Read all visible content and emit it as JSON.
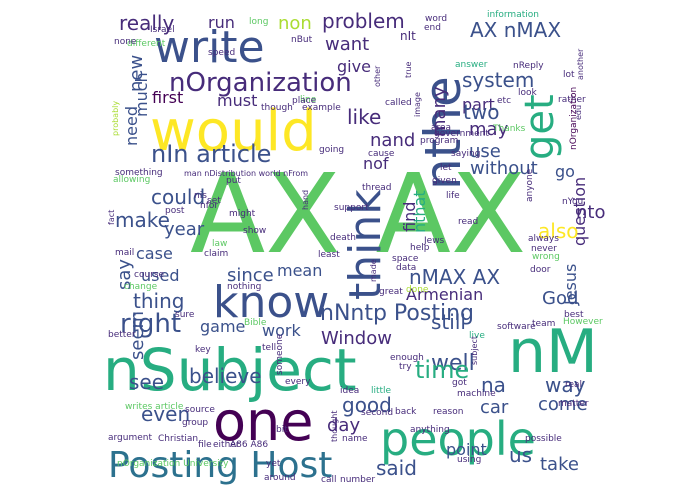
{
  "palette": {
    "dark_purple": "#440154",
    "purple": "#472c7a",
    "indigo": "#3b518b",
    "blue": "#2c718e",
    "teal_blue": "#21908d",
    "teal": "#27ad81",
    "green": "#5cc863",
    "lime": "#aadc32",
    "yellow": "#fde725"
  },
  "words": [
    {
      "text": "AX AX"
    },
    {
      "text": "nSubject"
    },
    {
      "text": "nM"
    },
    {
      "text": "write"
    },
    {
      "text": "would"
    },
    {
      "text": "nthe"
    },
    {
      "text": "think"
    },
    {
      "text": "get"
    },
    {
      "text": "know"
    },
    {
      "text": "one"
    },
    {
      "text": "people"
    },
    {
      "text": "Posting Host"
    },
    {
      "text": "nOrganization"
    },
    {
      "text": "nIn article"
    },
    {
      "text": "problem"
    },
    {
      "text": "AX nMAX"
    },
    {
      "text": "really"
    },
    {
      "text": "run"
    },
    {
      "text": "non"
    },
    {
      "text": "want"
    },
    {
      "text": "give"
    },
    {
      "text": "system"
    },
    {
      "text": "part"
    },
    {
      "text": "many"
    },
    {
      "text": "two"
    },
    {
      "text": "may"
    },
    {
      "text": "like"
    },
    {
      "text": "nand"
    },
    {
      "text": "use"
    },
    {
      "text": "nof"
    },
    {
      "text": "question"
    },
    {
      "text": "without"
    },
    {
      "text": "go"
    },
    {
      "text": "new"
    },
    {
      "text": "much"
    },
    {
      "text": "need"
    },
    {
      "text": "first"
    },
    {
      "text": "must"
    },
    {
      "text": "could"
    },
    {
      "text": "make"
    },
    {
      "text": "also"
    },
    {
      "text": "nto"
    },
    {
      "text": "nthat"
    },
    {
      "text": "find"
    },
    {
      "text": "year"
    },
    {
      "text": "case"
    },
    {
      "text": "say"
    },
    {
      "text": "used"
    },
    {
      "text": "since"
    },
    {
      "text": "mean"
    },
    {
      "text": "nMAX AX"
    },
    {
      "text": "Jesus"
    },
    {
      "text": "God"
    },
    {
      "text": "thing"
    },
    {
      "text": "right"
    },
    {
      "text": "Armenian"
    },
    {
      "text": "nNntp Posting"
    },
    {
      "text": "game"
    },
    {
      "text": "work"
    },
    {
      "text": "Window"
    },
    {
      "text": "still"
    },
    {
      "text": "well"
    },
    {
      "text": "na"
    },
    {
      "text": "way"
    },
    {
      "text": "seem"
    },
    {
      "text": "see"
    },
    {
      "text": "believe"
    },
    {
      "text": "time"
    },
    {
      "text": "good"
    },
    {
      "text": "car"
    },
    {
      "text": "come"
    },
    {
      "text": "day"
    },
    {
      "text": "even"
    },
    {
      "text": "us"
    },
    {
      "text": "said"
    },
    {
      "text": "point"
    },
    {
      "text": "take"
    },
    {
      "text": "nIt"
    },
    {
      "text": "speed"
    },
    {
      "text": "nBut"
    },
    {
      "text": "long"
    },
    {
      "text": "word"
    },
    {
      "text": "end"
    },
    {
      "text": "information"
    },
    {
      "text": "Israel"
    },
    {
      "text": "different"
    },
    {
      "text": "none"
    },
    {
      "text": "other"
    },
    {
      "text": "true"
    },
    {
      "text": "answer"
    },
    {
      "text": "nReply"
    },
    {
      "text": "another"
    },
    {
      "text": "lot"
    },
    {
      "text": "look"
    },
    {
      "text": "rather"
    },
    {
      "text": "etc"
    },
    {
      "text": "called"
    },
    {
      "text": "example"
    },
    {
      "text": "line"
    },
    {
      "text": "place"
    },
    {
      "text": "though"
    },
    {
      "text": "image"
    },
    {
      "text": "government"
    },
    {
      "text": "area"
    },
    {
      "text": "Thanks"
    },
    {
      "text": "nOrganization"
    },
    {
      "text": "edu"
    },
    {
      "text": "probably"
    },
    {
      "text": "program"
    },
    {
      "text": "saying"
    },
    {
      "text": "cause"
    },
    {
      "text": "going"
    },
    {
      "text": "something"
    },
    {
      "text": "allowing"
    },
    {
      "text": "man nDistribution world nFrom"
    },
    {
      "text": "thread"
    },
    {
      "text": "given"
    },
    {
      "text": "anyone"
    },
    {
      "text": "let"
    },
    {
      "text": "life"
    },
    {
      "text": "nis"
    },
    {
      "text": "nfor"
    },
    {
      "text": "put"
    },
    {
      "text": "set"
    },
    {
      "text": "post"
    },
    {
      "text": "might"
    },
    {
      "text": "support"
    },
    {
      "text": "read"
    },
    {
      "text": "nYou"
    },
    {
      "text": "hand"
    },
    {
      "text": "fact"
    },
    {
      "text": "show"
    },
    {
      "text": "mail"
    },
    {
      "text": "law"
    },
    {
      "text": "claim"
    },
    {
      "text": "death"
    },
    {
      "text": "least"
    },
    {
      "text": "Jews"
    },
    {
      "text": "help"
    },
    {
      "text": "always"
    },
    {
      "text": "never"
    },
    {
      "text": "wrong"
    },
    {
      "text": "door"
    },
    {
      "text": "course"
    },
    {
      "text": "change"
    },
    {
      "text": "nothing"
    },
    {
      "text": "space"
    },
    {
      "text": "data"
    },
    {
      "text": "made"
    },
    {
      "text": "great"
    },
    {
      "text": "done"
    },
    {
      "text": "better"
    },
    {
      "text": "sure"
    },
    {
      "text": "Bible"
    },
    {
      "text": "live"
    },
    {
      "text": "team"
    },
    {
      "text": "However"
    },
    {
      "text": "best"
    },
    {
      "text": "software"
    },
    {
      "text": "subject"
    },
    {
      "text": "key"
    },
    {
      "text": "tell"
    },
    {
      "text": "someone"
    },
    {
      "text": "enough"
    },
    {
      "text": "try"
    },
    {
      "text": "every"
    },
    {
      "text": "idea"
    },
    {
      "text": "little"
    },
    {
      "text": "got"
    },
    {
      "text": "real"
    },
    {
      "text": "machine"
    },
    {
      "text": "writes article"
    },
    {
      "text": "source"
    },
    {
      "text": "second"
    },
    {
      "text": "back"
    },
    {
      "text": "reason"
    },
    {
      "text": "matter"
    },
    {
      "text": "group"
    },
    {
      "text": "argument"
    },
    {
      "text": "Christian"
    },
    {
      "text": "file"
    },
    {
      "text": "either"
    },
    {
      "text": "A86 A86"
    },
    {
      "text": "bit"
    },
    {
      "text": "thought"
    },
    {
      "text": "name"
    },
    {
      "text": "anything"
    },
    {
      "text": "using"
    },
    {
      "text": "possible"
    },
    {
      "text": "nOrganization University"
    },
    {
      "text": "yet"
    },
    {
      "text": "around"
    },
    {
      "text": "call"
    },
    {
      "text": "number"
    }
  ]
}
